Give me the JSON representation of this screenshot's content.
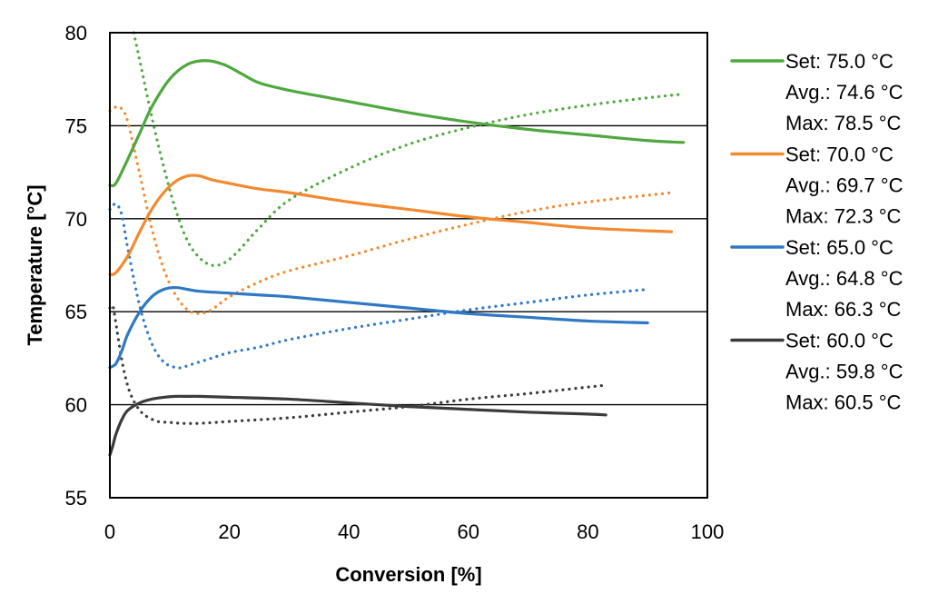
{
  "chart_data": {
    "type": "line",
    "title": "",
    "xlabel": "Conversion [%]",
    "ylabel": "Temperature [°C]",
    "xlim": [
      0,
      100
    ],
    "ylim": [
      55,
      80
    ],
    "xticks": [
      0,
      20,
      40,
      60,
      80,
      100
    ],
    "yticks": [
      55,
      60,
      65,
      70,
      75,
      80
    ],
    "xtick_labels": [
      "0",
      "20",
      "40",
      "60",
      "80",
      "100"
    ],
    "ytick_labels": [
      "55",
      "60",
      "65",
      "70",
      "75",
      "80"
    ],
    "grid": "horizontal",
    "legend_position": "right",
    "series": [
      {
        "id": "s75",
        "name": "75.0 °C",
        "color": "#4ea83e",
        "legend": {
          "set": "Set:   75.0 °C",
          "avg": "Avg.: 74.6 °C",
          "max": "Max: 78.5 °C"
        },
        "reactor_temperature": {
          "x": [
            0,
            1,
            3,
            5,
            7,
            10,
            13,
            16,
            19,
            22,
            25,
            30,
            35,
            40,
            50,
            60,
            70,
            80,
            90,
            96
          ],
          "y": [
            71.8,
            71.9,
            73.2,
            74.6,
            76.0,
            77.5,
            78.3,
            78.5,
            78.3,
            77.8,
            77.3,
            76.9,
            76.6,
            76.3,
            75.7,
            75.2,
            74.8,
            74.5,
            74.2,
            74.1
          ]
        },
        "jacket_temperature": {
          "x": [
            4,
            5,
            7,
            9,
            11,
            13,
            15,
            17,
            19,
            21,
            23,
            25,
            30,
            40,
            50,
            60,
            70,
            80,
            90,
            96
          ],
          "y": [
            80,
            78.5,
            75.5,
            72.8,
            70.5,
            68.8,
            67.9,
            67.5,
            67.6,
            68.1,
            68.8,
            69.5,
            71.0,
            72.7,
            74.0,
            74.9,
            75.6,
            76.1,
            76.5,
            76.7
          ]
        }
      },
      {
        "id": "s70",
        "name": "70.0 °C",
        "color": "#f28a30",
        "legend": {
          "set": "Set:   70.0 °C",
          "avg": "Avg.: 69.7 °C",
          "max": "Max: 72.3 °C"
        },
        "reactor_temperature": {
          "x": [
            0,
            1,
            3,
            5,
            7,
            9,
            11,
            13,
            15,
            17,
            20,
            25,
            30,
            40,
            50,
            60,
            70,
            80,
            94
          ],
          "y": [
            67.0,
            67.1,
            68.0,
            69.3,
            70.5,
            71.4,
            72.0,
            72.3,
            72.3,
            72.1,
            71.9,
            71.6,
            71.4,
            70.9,
            70.5,
            70.1,
            69.8,
            69.5,
            69.3
          ]
        },
        "jacket_temperature": {
          "x": [
            0,
            1,
            2,
            3,
            5,
            7,
            9,
            11,
            13,
            15,
            17,
            20,
            25,
            30,
            40,
            50,
            60,
            70,
            80,
            94
          ],
          "y": [
            75.8,
            76.0,
            75.9,
            75.2,
            72.4,
            69.5,
            67.3,
            65.9,
            65.1,
            64.9,
            65.1,
            65.8,
            66.6,
            67.2,
            68.0,
            68.9,
            69.7,
            70.4,
            70.9,
            71.4
          ]
        }
      },
      {
        "id": "s65",
        "name": "65.0 °C",
        "color": "#2f78c4",
        "legend": {
          "set": "Set:   65.0 °C",
          "avg": "Avg.: 64.8 °C",
          "max": "Max: 66.3 °C"
        },
        "reactor_temperature": {
          "x": [
            0,
            1,
            2,
            3,
            5,
            7,
            9,
            11,
            13,
            15,
            20,
            25,
            30,
            40,
            50,
            60,
            70,
            80,
            90
          ],
          "y": [
            62.0,
            62.2,
            62.9,
            63.8,
            65.0,
            65.8,
            66.2,
            66.3,
            66.2,
            66.1,
            66.0,
            65.9,
            65.8,
            65.5,
            65.2,
            64.9,
            64.7,
            64.5,
            64.4
          ]
        },
        "jacket_temperature": {
          "x": [
            0,
            1,
            2,
            3,
            5,
            7,
            9,
            11,
            12,
            14,
            17,
            20,
            25,
            30,
            40,
            50,
            60,
            70,
            80,
            90
          ],
          "y": [
            70.5,
            70.8,
            70.2,
            68.4,
            65.3,
            63.3,
            62.3,
            62.0,
            62.0,
            62.2,
            62.5,
            62.8,
            63.1,
            63.5,
            64.1,
            64.6,
            65.1,
            65.5,
            65.9,
            66.2
          ]
        }
      },
      {
        "id": "s60",
        "name": "60.0 °C",
        "color": "#3b3b3b",
        "legend": {
          "set": "Set:   60.0 °C",
          "avg": "Avg.: 59.8 °C",
          "max": "Max: 60.5 °C"
        },
        "reactor_temperature": {
          "x": [
            0,
            0.5,
            1,
            2,
            3,
            5,
            7,
            9,
            11,
            13,
            15,
            20,
            30,
            40,
            50,
            60,
            70,
            80,
            83
          ],
          "y": [
            57.3,
            57.8,
            58.4,
            59.2,
            59.7,
            60.1,
            60.3,
            60.4,
            60.45,
            60.45,
            60.45,
            60.4,
            60.3,
            60.1,
            59.9,
            59.75,
            59.6,
            59.5,
            59.45
          ]
        },
        "jacket_temperature": {
          "x": [
            0,
            0.5,
            1,
            2,
            3,
            4,
            5,
            6,
            8,
            10,
            12,
            15,
            20,
            30,
            40,
            50,
            60,
            70,
            80,
            83
          ],
          "y": [
            65.2,
            65.3,
            64.4,
            62.4,
            61.0,
            60.2,
            59.7,
            59.4,
            59.1,
            59.05,
            59.0,
            59.0,
            59.1,
            59.3,
            59.6,
            59.9,
            60.3,
            60.6,
            60.95,
            61.05
          ]
        }
      }
    ]
  }
}
